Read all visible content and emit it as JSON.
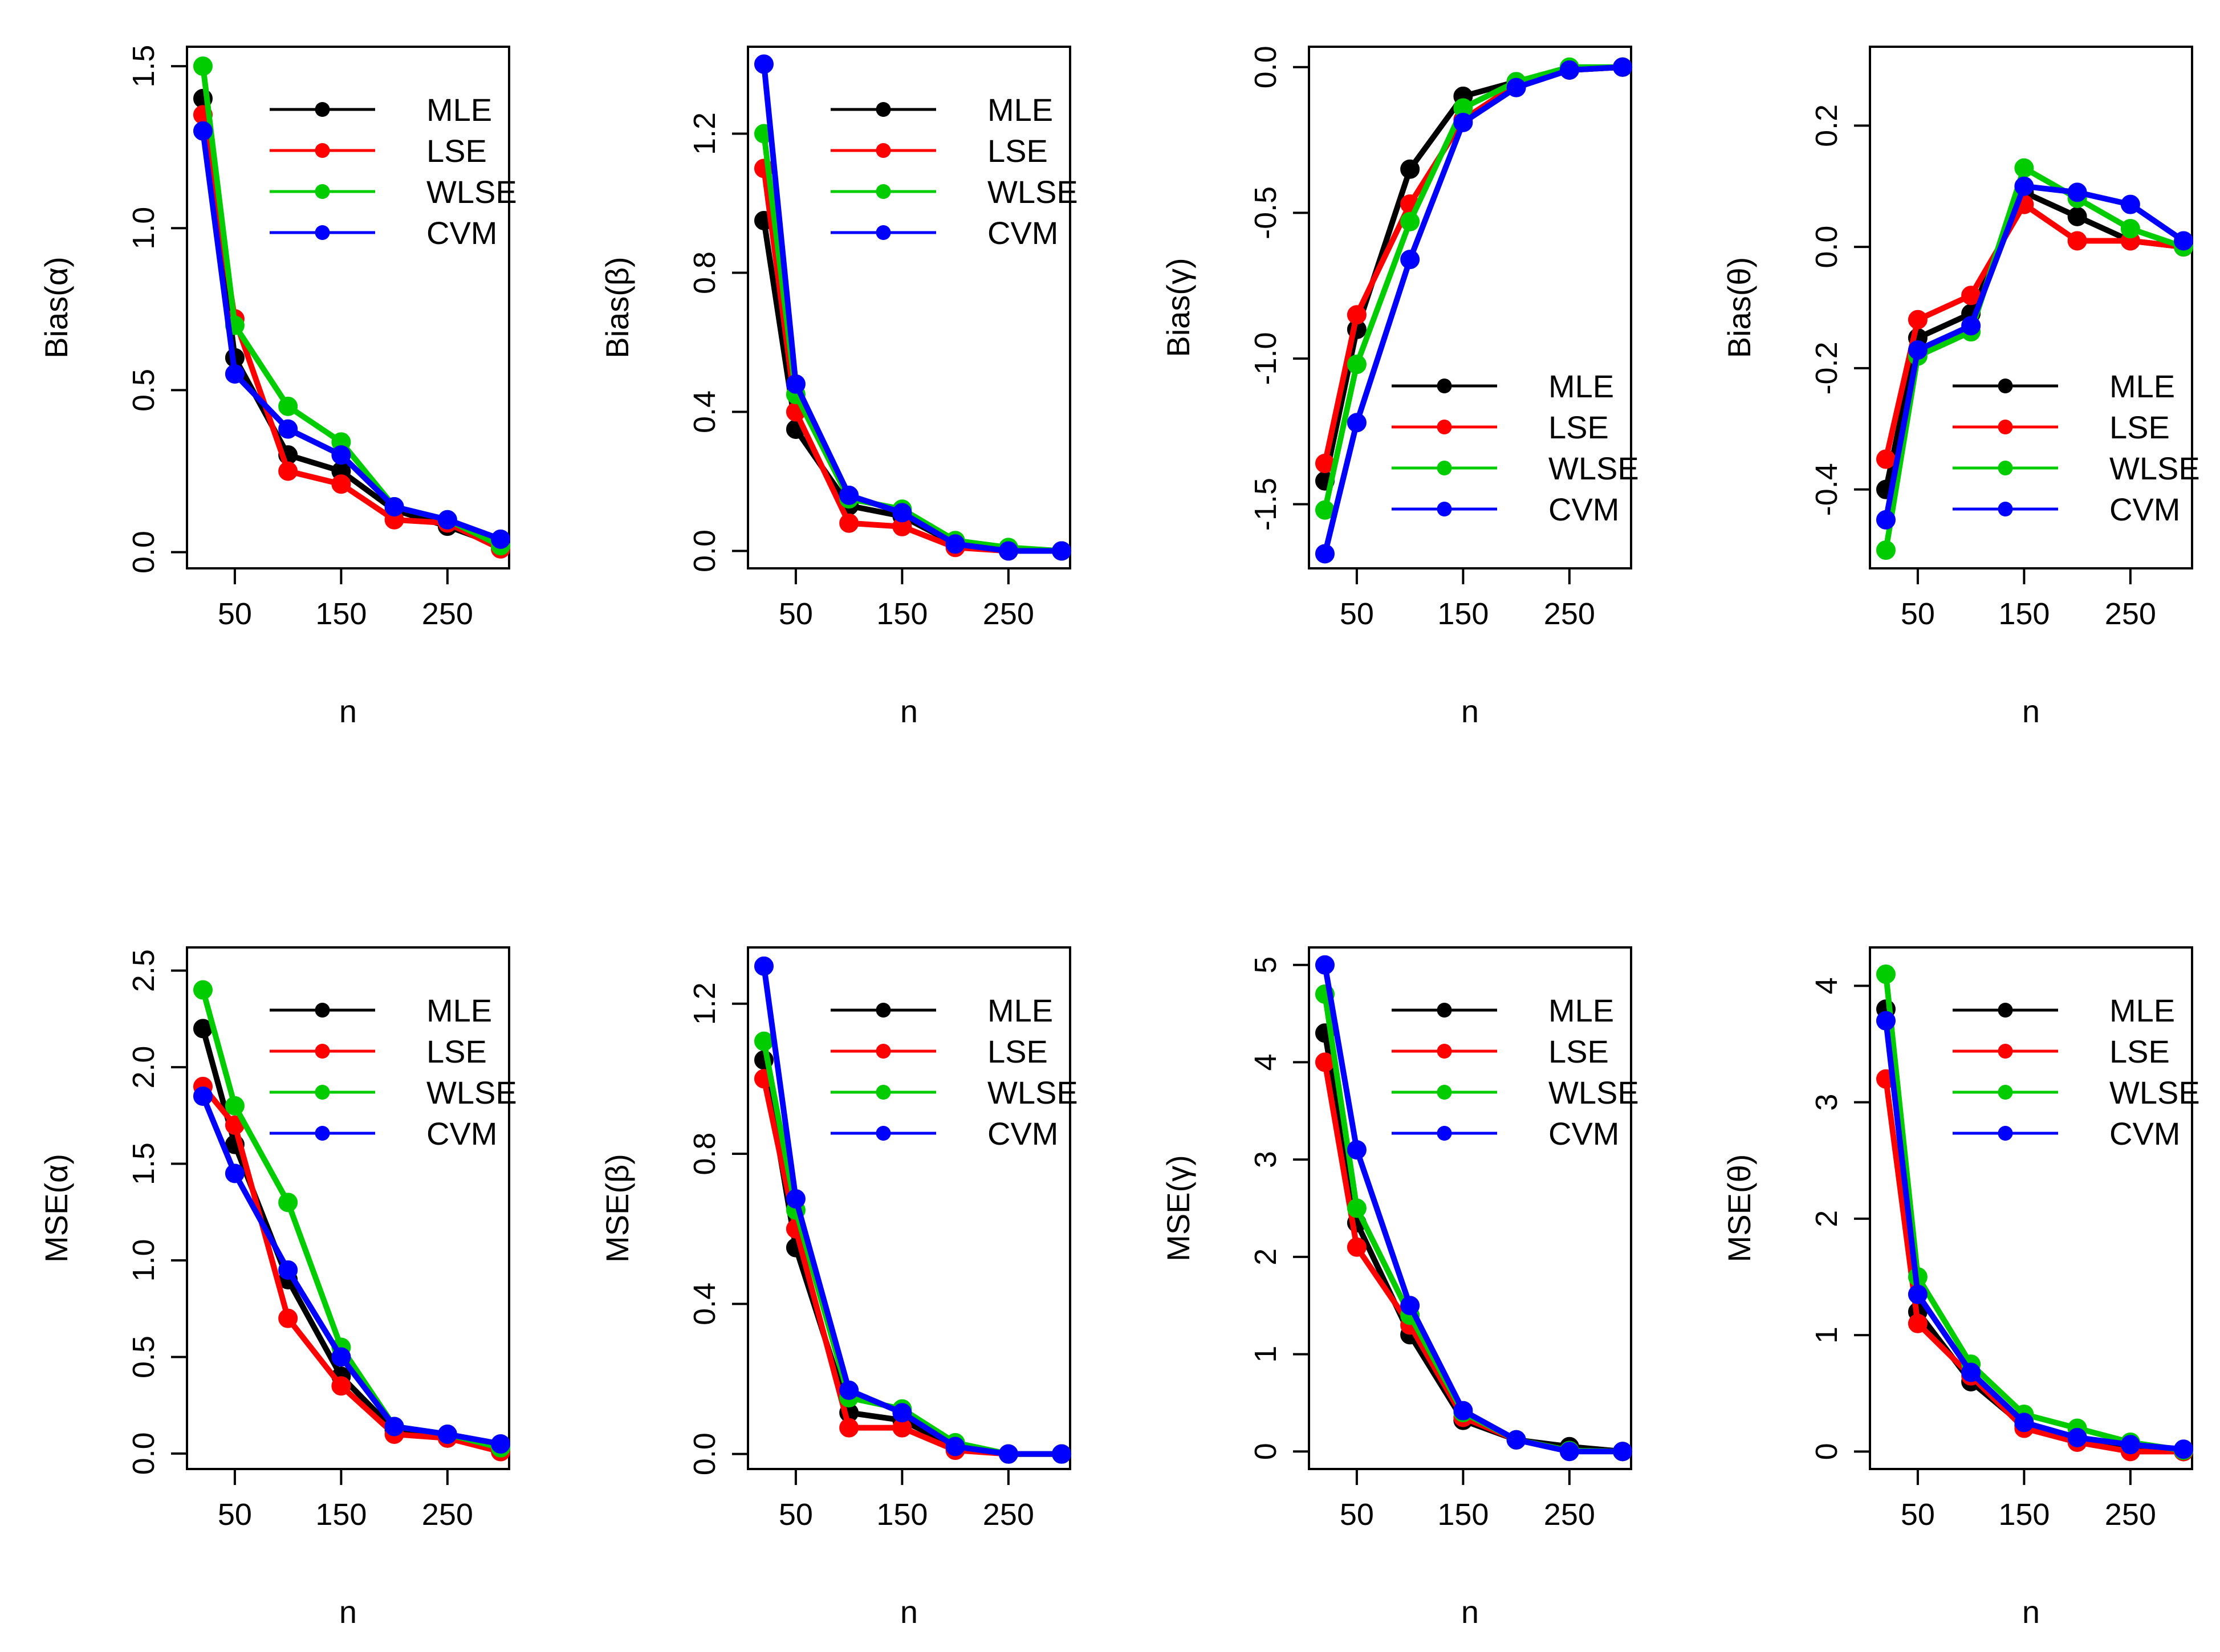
{
  "figure": {
    "series_order": [
      "MLE",
      "LSE",
      "WLSE",
      "CVM"
    ],
    "colors": {
      "MLE": "#000000",
      "LSE": "#ff0000",
      "WLSE": "#00cc00",
      "CVM": "#0000ff"
    }
  },
  "chart_data": [
    {
      "type": "line",
      "title": "",
      "xlabel": "n",
      "ylabel": "Bias(α)",
      "x": [
        20,
        50,
        100,
        150,
        200,
        250,
        300
      ],
      "xlim": [
        5,
        308
      ],
      "ylim": [
        -0.05,
        1.56
      ],
      "xticks": [
        50,
        150,
        250
      ],
      "yticks": [
        0.0,
        0.5,
        1.0,
        1.5
      ],
      "ytick_labels": [
        "0.0",
        "0.5",
        "1.0",
        "1.5"
      ],
      "legend_position": "top-right",
      "series": [
        {
          "name": "MLE",
          "values": [
            1.4,
            0.6,
            0.3,
            0.25,
            0.13,
            0.08,
            0.02
          ]
        },
        {
          "name": "LSE",
          "values": [
            1.35,
            0.72,
            0.25,
            0.21,
            0.1,
            0.09,
            0.01
          ]
        },
        {
          "name": "WLSE",
          "values": [
            1.5,
            0.7,
            0.45,
            0.34,
            0.14,
            0.1,
            0.02
          ]
        },
        {
          "name": "CVM",
          "values": [
            1.3,
            0.55,
            0.38,
            0.3,
            0.14,
            0.1,
            0.04
          ]
        }
      ]
    },
    {
      "type": "line",
      "title": "",
      "xlabel": "n",
      "ylabel": "Bias(β)",
      "x": [
        20,
        50,
        100,
        150,
        200,
        250,
        300
      ],
      "xlim": [
        5,
        308
      ],
      "ylim": [
        -0.05,
        1.45
      ],
      "xticks": [
        50,
        150,
        250
      ],
      "yticks": [
        0.0,
        0.4,
        0.8,
        1.2
      ],
      "ytick_labels": [
        "0.0",
        "0.4",
        "0.8",
        "1.2"
      ],
      "legend_position": "top-right",
      "series": [
        {
          "name": "MLE",
          "values": [
            0.95,
            0.35,
            0.13,
            0.1,
            0.02,
            0.0,
            0.0
          ]
        },
        {
          "name": "LSE",
          "values": [
            1.1,
            0.4,
            0.08,
            0.07,
            0.01,
            0.0,
            0.0
          ]
        },
        {
          "name": "WLSE",
          "values": [
            1.2,
            0.45,
            0.15,
            0.12,
            0.03,
            0.01,
            0.0
          ]
        },
        {
          "name": "CVM",
          "values": [
            1.4,
            0.48,
            0.16,
            0.11,
            0.02,
            0.0,
            0.0
          ]
        }
      ]
    },
    {
      "type": "line",
      "title": "",
      "xlabel": "n",
      "ylabel": "Bias(γ)",
      "x": [
        20,
        50,
        100,
        150,
        200,
        250,
        300
      ],
      "xlim": [
        5,
        308
      ],
      "ylim": [
        -1.72,
        0.07
      ],
      "xticks": [
        50,
        150,
        250
      ],
      "yticks": [
        -1.5,
        -1.0,
        -0.5,
        0.0
      ],
      "ytick_labels": [
        "-1.5",
        "-1.0",
        "-0.5",
        "0.0"
      ],
      "legend_position": "bottom-right",
      "series": [
        {
          "name": "MLE",
          "values": [
            -1.42,
            -0.9,
            -0.35,
            -0.1,
            -0.05,
            -0.01,
            0.0
          ]
        },
        {
          "name": "LSE",
          "values": [
            -1.36,
            -0.85,
            -0.47,
            -0.18,
            -0.06,
            -0.01,
            0.0
          ]
        },
        {
          "name": "WLSE",
          "values": [
            -1.52,
            -1.02,
            -0.53,
            -0.14,
            -0.05,
            0.0,
            0.0
          ]
        },
        {
          "name": "CVM",
          "values": [
            -1.67,
            -1.22,
            -0.66,
            -0.19,
            -0.07,
            -0.01,
            0.0
          ]
        }
      ]
    },
    {
      "type": "line",
      "title": "",
      "xlabel": "n",
      "ylabel": "Bias(θ)",
      "x": [
        20,
        50,
        100,
        150,
        200,
        250,
        300
      ],
      "xlim": [
        5,
        308
      ],
      "ylim": [
        -0.53,
        0.33
      ],
      "xticks": [
        50,
        150,
        250
      ],
      "yticks": [
        -0.4,
        -0.2,
        0.0,
        0.2
      ],
      "ytick_labels": [
        "-0.4",
        "-0.2",
        "0.0",
        "0.2"
      ],
      "legend_position": "bottom-right",
      "series": [
        {
          "name": "MLE",
          "values": [
            -0.4,
            -0.15,
            -0.11,
            0.09,
            0.05,
            0.01,
            0.0
          ]
        },
        {
          "name": "LSE",
          "values": [
            -0.35,
            -0.12,
            -0.08,
            0.07,
            0.01,
            0.01,
            0.0
          ]
        },
        {
          "name": "WLSE",
          "values": [
            -0.5,
            -0.18,
            -0.14,
            0.13,
            0.08,
            0.03,
            0.0
          ]
        },
        {
          "name": "CVM",
          "values": [
            -0.45,
            -0.17,
            -0.13,
            0.1,
            0.09,
            0.07,
            0.01
          ]
        }
      ]
    },
    {
      "type": "line",
      "title": "",
      "xlabel": "n",
      "ylabel": "MSE(α)",
      "x": [
        20,
        50,
        100,
        150,
        200,
        250,
        300
      ],
      "xlim": [
        5,
        308
      ],
      "ylim": [
        -0.08,
        2.62
      ],
      "xticks": [
        50,
        150,
        250
      ],
      "yticks": [
        0.0,
        0.5,
        1.0,
        1.5,
        2.0,
        2.5
      ],
      "ytick_labels": [
        "0.0",
        "0.5",
        "1.0",
        "1.5",
        "2.0",
        "2.5"
      ],
      "legend_position": "top-right",
      "series": [
        {
          "name": "MLE",
          "values": [
            2.2,
            1.6,
            0.9,
            0.4,
            0.12,
            0.08,
            0.02
          ]
        },
        {
          "name": "LSE",
          "values": [
            1.9,
            1.7,
            0.7,
            0.35,
            0.1,
            0.08,
            0.01
          ]
        },
        {
          "name": "WLSE",
          "values": [
            2.4,
            1.8,
            1.3,
            0.55,
            0.14,
            0.1,
            0.03
          ]
        },
        {
          "name": "CVM",
          "values": [
            1.85,
            1.45,
            0.95,
            0.5,
            0.14,
            0.1,
            0.05
          ]
        }
      ]
    },
    {
      "type": "line",
      "title": "",
      "xlabel": "n",
      "ylabel": "MSE(β)",
      "x": [
        20,
        50,
        100,
        150,
        200,
        250,
        300
      ],
      "xlim": [
        5,
        308
      ],
      "ylim": [
        -0.04,
        1.35
      ],
      "xticks": [
        50,
        150,
        250
      ],
      "yticks": [
        0.0,
        0.4,
        0.8,
        1.2
      ],
      "ytick_labels": [
        "0.0",
        "0.4",
        "0.8",
        "1.2"
      ],
      "legend_position": "top-right",
      "series": [
        {
          "name": "MLE",
          "values": [
            1.05,
            0.55,
            0.11,
            0.09,
            0.02,
            0.0,
            0.0
          ]
        },
        {
          "name": "LSE",
          "values": [
            1.0,
            0.6,
            0.07,
            0.07,
            0.01,
            0.0,
            0.0
          ]
        },
        {
          "name": "WLSE",
          "values": [
            1.1,
            0.65,
            0.15,
            0.12,
            0.03,
            0.0,
            0.0
          ]
        },
        {
          "name": "CVM",
          "values": [
            1.3,
            0.68,
            0.17,
            0.11,
            0.02,
            0.0,
            0.0
          ]
        }
      ]
    },
    {
      "type": "line",
      "title": "",
      "xlabel": "n",
      "ylabel": "MSE(γ)",
      "x": [
        20,
        50,
        100,
        150,
        200,
        250,
        300
      ],
      "xlim": [
        5,
        308
      ],
      "ylim": [
        -0.18,
        5.18
      ],
      "xticks": [
        50,
        150,
        250
      ],
      "yticks": [
        0,
        1,
        2,
        3,
        4,
        5
      ],
      "ytick_labels": [
        "0",
        "1",
        "2",
        "3",
        "4",
        "5"
      ],
      "legend_position": "top-right",
      "series": [
        {
          "name": "MLE",
          "values": [
            4.3,
            2.35,
            1.2,
            0.32,
            0.12,
            0.05,
            0.0
          ]
        },
        {
          "name": "LSE",
          "values": [
            4.0,
            2.1,
            1.3,
            0.35,
            0.12,
            0.01,
            0.0
          ]
        },
        {
          "name": "WLSE",
          "values": [
            4.7,
            2.5,
            1.4,
            0.4,
            0.12,
            0.01,
            0.0
          ]
        },
        {
          "name": "CVM",
          "values": [
            5.0,
            3.1,
            1.5,
            0.42,
            0.12,
            0.0,
            0.0
          ]
        }
      ]
    },
    {
      "type": "line",
      "title": "",
      "xlabel": "n",
      "ylabel": "MSE(θ)",
      "x": [
        20,
        50,
        100,
        150,
        200,
        250,
        300
      ],
      "xlim": [
        5,
        308
      ],
      "ylim": [
        -0.15,
        4.33
      ],
      "xticks": [
        50,
        150,
        250
      ],
      "yticks": [
        0,
        1,
        2,
        3,
        4
      ],
      "ytick_labels": [
        "0",
        "1",
        "2",
        "3",
        "4"
      ],
      "legend_position": "top-right",
      "series": [
        {
          "name": "MLE",
          "values": [
            3.8,
            1.2,
            0.6,
            0.22,
            0.12,
            0.05,
            0.0
          ]
        },
        {
          "name": "LSE",
          "values": [
            3.2,
            1.1,
            0.65,
            0.2,
            0.08,
            0.0,
            0.0
          ]
        },
        {
          "name": "WLSE",
          "values": [
            4.1,
            1.5,
            0.75,
            0.32,
            0.2,
            0.08,
            0.01
          ]
        },
        {
          "name": "CVM",
          "values": [
            3.7,
            1.35,
            0.68,
            0.25,
            0.12,
            0.06,
            0.02
          ]
        }
      ]
    }
  ]
}
